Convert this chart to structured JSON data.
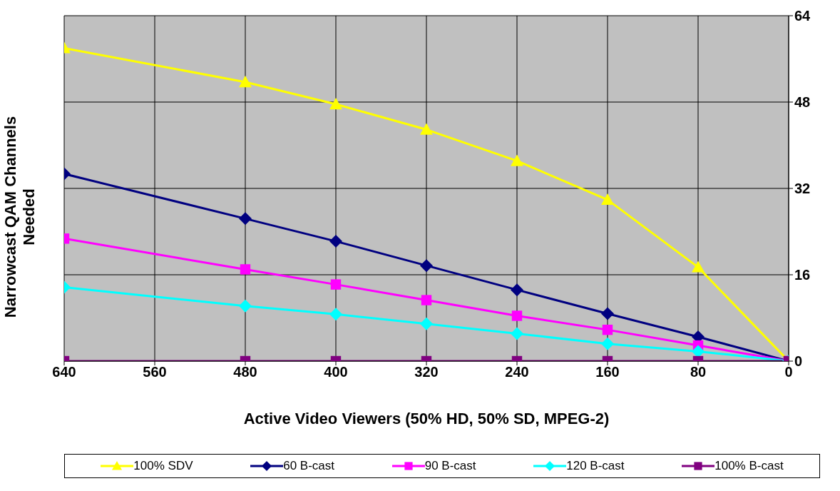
{
  "chart_data": {
    "type": "line",
    "xlabel": "Active Video Viewers (50% HD, 50% SD, MPEG-2)",
    "ylabel": "Narrowcast QAM Channels Needed",
    "x": [
      640,
      480,
      400,
      320,
      240,
      160,
      80,
      0
    ],
    "xlim": [
      640,
      0
    ],
    "xticks": [
      640,
      560,
      480,
      400,
      320,
      240,
      160,
      80,
      0
    ],
    "ylim": [
      0,
      64
    ],
    "yticks": [
      0,
      16,
      32,
      48,
      64
    ],
    "grid": true,
    "legend": "bottom",
    "series": [
      {
        "name": "100% SDV",
        "color": "#ffff00",
        "marker": "triangle",
        "values": [
          58.0,
          51.7,
          47.6,
          42.9,
          37.1,
          29.9,
          17.4,
          0
        ]
      },
      {
        "name": "60 B-cast",
        "color": "#000080",
        "marker": "diamond",
        "values": [
          34.7,
          26.4,
          22.2,
          17.7,
          13.2,
          8.8,
          4.5,
          0
        ]
      },
      {
        "name": "90 B-cast",
        "color": "#ff00ff",
        "marker": "square",
        "values": [
          22.7,
          17.0,
          14.2,
          11.3,
          8.4,
          5.8,
          2.9,
          0
        ]
      },
      {
        "name": "120 B-cast",
        "color": "#00ffff",
        "marker": "diamond",
        "values": [
          13.7,
          10.2,
          8.7,
          6.9,
          5.1,
          3.2,
          1.8,
          0
        ]
      },
      {
        "name": "100% B-cast",
        "color": "#800080",
        "marker": "square",
        "values": [
          0,
          0,
          0,
          0,
          0,
          0,
          0,
          0
        ]
      }
    ]
  }
}
